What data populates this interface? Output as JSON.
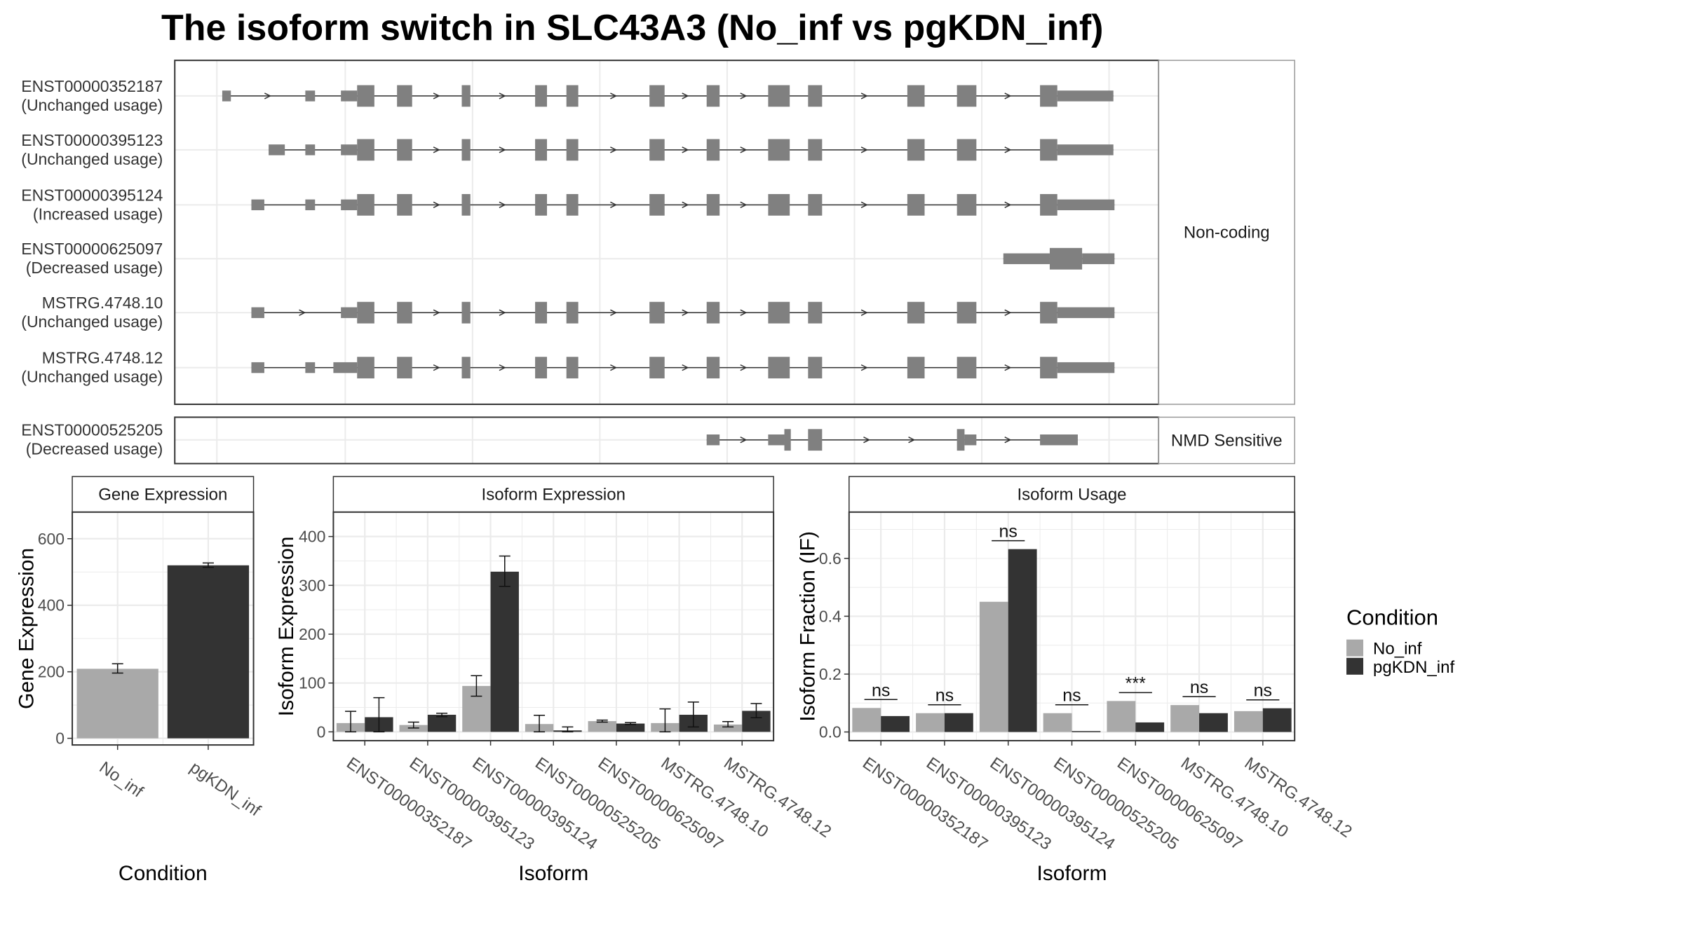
{
  "title": "The isoform switch in SLC43A3 (No_inf vs pgKDN_inf)",
  "colors": {
    "exon": "#808080",
    "no_inf": "#A9A9A9",
    "pgkdn_inf": "#333333",
    "panel_border": "#333333",
    "strip_fill": "#ffffff",
    "grid": "#ebebeb"
  },
  "structure": {
    "groups": [
      {
        "label": "Non-coding",
        "transcripts": [
          {
            "id": "ENST00000352187",
            "usage": "(Unchanged usage)",
            "exons": [
              [
                206,
                214,
                "s"
              ],
              [
                283,
                292,
                "s"
              ],
              [
                316,
                331,
                "s"
              ],
              [
                331,
                347,
                "l"
              ],
              [
                368,
                382,
                "l"
              ],
              [
                428,
                436,
                "l"
              ],
              [
                496,
                507,
                "l"
              ],
              [
                525,
                536,
                "l"
              ],
              [
                602,
                616,
                "l"
              ],
              [
                655,
                667,
                "l"
              ],
              [
                712,
                732,
                "l"
              ],
              [
                749,
                762,
                "l"
              ],
              [
                841,
                857,
                "l"
              ],
              [
                887,
                905,
                "l"
              ],
              [
                964,
                980,
                "l"
              ],
              [
                980,
                1032,
                "s"
              ]
            ]
          },
          {
            "id": "ENST00000395123",
            "usage": "(Unchanged usage)",
            "exons": [
              [
                249,
                264,
                "s"
              ],
              [
                283,
                292,
                "s"
              ],
              [
                316,
                331,
                "s"
              ],
              [
                331,
                347,
                "l"
              ],
              [
                368,
                382,
                "l"
              ],
              [
                428,
                436,
                "l"
              ],
              [
                496,
                507,
                "l"
              ],
              [
                525,
                536,
                "l"
              ],
              [
                602,
                616,
                "l"
              ],
              [
                655,
                667,
                "l"
              ],
              [
                712,
                732,
                "l"
              ],
              [
                749,
                762,
                "l"
              ],
              [
                841,
                857,
                "l"
              ],
              [
                887,
                905,
                "l"
              ],
              [
                964,
                980,
                "l"
              ],
              [
                980,
                1032,
                "s"
              ]
            ]
          },
          {
            "id": "ENST00000395124",
            "usage": "(Increased usage)",
            "exons": [
              [
                233,
                245,
                "s"
              ],
              [
                283,
                292,
                "s"
              ],
              [
                316,
                331,
                "s"
              ],
              [
                331,
                347,
                "l"
              ],
              [
                368,
                382,
                "l"
              ],
              [
                428,
                436,
                "l"
              ],
              [
                496,
                507,
                "l"
              ],
              [
                525,
                536,
                "l"
              ],
              [
                602,
                616,
                "l"
              ],
              [
                655,
                667,
                "l"
              ],
              [
                712,
                732,
                "l"
              ],
              [
                749,
                762,
                "l"
              ],
              [
                841,
                857,
                "l"
              ],
              [
                887,
                905,
                "l"
              ],
              [
                964,
                980,
                "l"
              ],
              [
                980,
                1033,
                "s"
              ]
            ]
          },
          {
            "id": "ENST00000625097",
            "usage": "(Decreased usage)",
            "exons": [
              [
                930,
                973,
                "s"
              ],
              [
                973,
                1003,
                "l"
              ],
              [
                1003,
                1033,
                "s"
              ]
            ]
          },
          {
            "id": "MSTRG.4748.10",
            "usage": "(Unchanged usage)",
            "exons": [
              [
                233,
                245,
                "s"
              ],
              [
                316,
                331,
                "s"
              ],
              [
                331,
                347,
                "l"
              ],
              [
                368,
                382,
                "l"
              ],
              [
                428,
                436,
                "l"
              ],
              [
                496,
                507,
                "l"
              ],
              [
                525,
                536,
                "l"
              ],
              [
                602,
                616,
                "l"
              ],
              [
                655,
                667,
                "l"
              ],
              [
                712,
                732,
                "l"
              ],
              [
                749,
                762,
                "l"
              ],
              [
                841,
                857,
                "l"
              ],
              [
                887,
                905,
                "l"
              ],
              [
                964,
                980,
                "l"
              ],
              [
                980,
                1033,
                "s"
              ]
            ]
          },
          {
            "id": "MSTRG.4748.12",
            "usage": "(Unchanged usage)",
            "exons": [
              [
                233,
                245,
                "s"
              ],
              [
                283,
                292,
                "s"
              ],
              [
                309,
                331,
                "s"
              ],
              [
                331,
                347,
                "l"
              ],
              [
                368,
                382,
                "l"
              ],
              [
                428,
                436,
                "l"
              ],
              [
                496,
                507,
                "l"
              ],
              [
                525,
                536,
                "l"
              ],
              [
                602,
                616,
                "l"
              ],
              [
                655,
                667,
                "l"
              ],
              [
                712,
                732,
                "l"
              ],
              [
                749,
                762,
                "l"
              ],
              [
                841,
                857,
                "l"
              ],
              [
                887,
                905,
                "l"
              ],
              [
                964,
                980,
                "l"
              ],
              [
                980,
                1033,
                "s"
              ]
            ]
          }
        ]
      },
      {
        "label": "NMD Sensitive",
        "transcripts": [
          {
            "id": "ENST00000525205",
            "usage": "(Decreased usage)",
            "exons": [
              [
                655,
                667,
                "s"
              ],
              [
                712,
                727,
                "s"
              ],
              [
                727,
                733,
                "l"
              ],
              [
                749,
                762,
                "l"
              ],
              [
                887,
                894,
                "l"
              ],
              [
                894,
                905,
                "s"
              ],
              [
                964,
                999,
                "s"
              ]
            ]
          }
        ]
      }
    ]
  },
  "chart_data": [
    {
      "type": "bar",
      "title": "Gene Expression",
      "xlabel": "Condition",
      "ylabel": "Gene Expression",
      "categories": [
        "No_inf",
        "pgKDN_inf"
      ],
      "values": [
        209,
        520
      ],
      "errors": [
        [
          196,
          224
        ],
        [
          514,
          527
        ]
      ],
      "ylim": [
        -20,
        680
      ],
      "yticks": [
        0,
        200,
        400,
        600
      ],
      "grid": true
    },
    {
      "type": "bar",
      "title": "Isoform Expression",
      "xlabel": "Isoform",
      "ylabel": "Isoform Expression",
      "categories": [
        "ENST00000352187",
        "ENST00000395123",
        "ENST00000395124",
        "ENST00000525205",
        "ENST00000625097",
        "MSTRG.4748.10",
        "MSTRG.4748.12"
      ],
      "series": [
        {
          "name": "No_inf",
          "values": [
            18,
            14,
            94,
            16,
            22,
            18,
            15
          ],
          "errors": [
            [
              0,
              42
            ],
            [
              8,
              20
            ],
            [
              73,
              115
            ],
            [
              0,
              34
            ],
            [
              20,
              24
            ],
            [
              0,
              47
            ],
            [
              10,
              21
            ]
          ]
        },
        {
          "name": "pgKDN_inf",
          "values": [
            30,
            35,
            328,
            3,
            17,
            35,
            43
          ],
          "errors": [
            [
              0,
              70
            ],
            [
              31,
              38
            ],
            [
              298,
              360
            ],
            [
              0,
              10
            ],
            [
              15,
              19
            ],
            [
              10,
              61
            ],
            [
              29,
              58
            ]
          ]
        }
      ],
      "ylim": [
        -18,
        450
      ],
      "yticks": [
        0,
        100,
        200,
        300,
        400
      ],
      "grid": true
    },
    {
      "type": "bar",
      "title": "Isoform Usage",
      "xlabel": "Isoform",
      "ylabel": "Isoform Fraction (IF)",
      "categories": [
        "ENST00000352187",
        "ENST00000395123",
        "ENST00000395124",
        "ENST00000525205",
        "ENST00000625097",
        "MSTRG.4748.10",
        "MSTRG.4748.12"
      ],
      "series": [
        {
          "name": "No_inf",
          "values": [
            0.083,
            0.065,
            0.45,
            0.065,
            0.107,
            0.093,
            0.072
          ]
        },
        {
          "name": "pgKDN_inf",
          "values": [
            0.055,
            0.065,
            0.632,
            0.003,
            0.033,
            0.065,
            0.082
          ]
        }
      ],
      "significance": [
        "ns",
        "ns",
        "ns",
        "ns",
        "***",
        "ns",
        "ns"
      ],
      "ylim": [
        -0.03,
        0.76
      ],
      "yticks": [
        0.0,
        0.2,
        0.4,
        0.6
      ],
      "grid": true
    }
  ],
  "legend": {
    "title": "Condition",
    "placement": "right",
    "entries": [
      "No_inf",
      "pgKDN_inf"
    ]
  }
}
